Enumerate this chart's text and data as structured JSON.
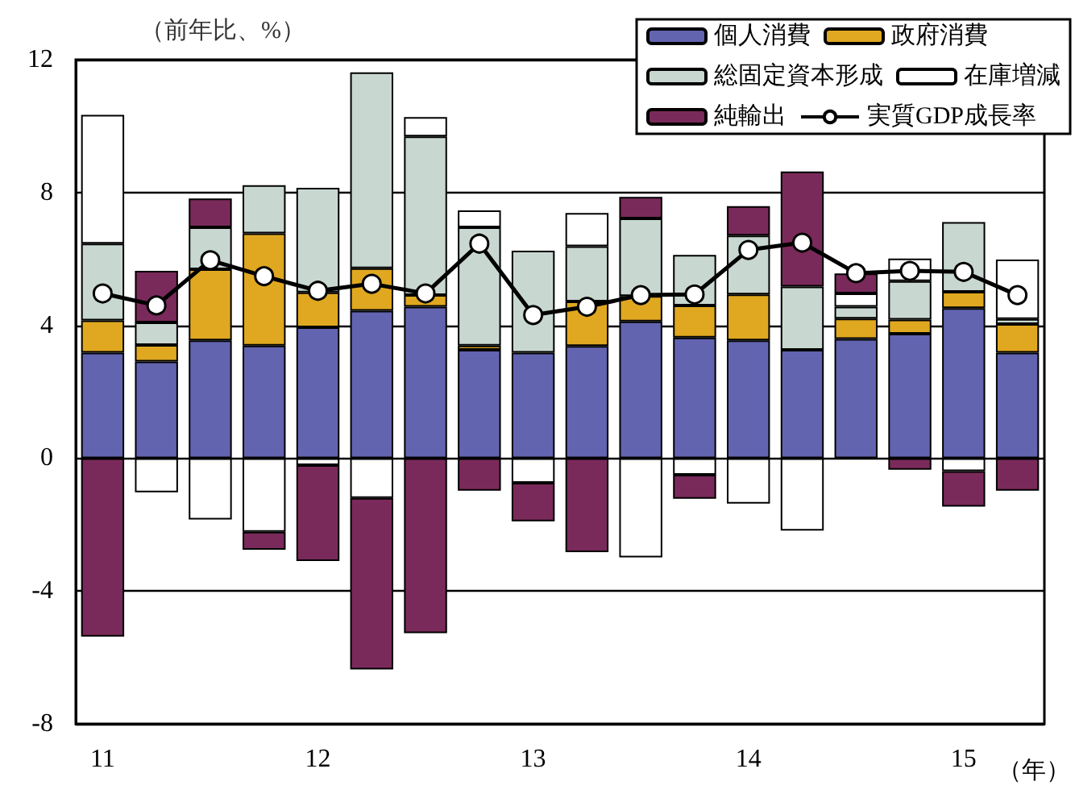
{
  "chart_data": {
    "type": "bar",
    "stacked": true,
    "ylabel": "（前年比、%）",
    "xlabel": "（年）",
    "categories": [
      "11",
      null,
      null,
      null,
      "12",
      null,
      null,
      null,
      "13",
      null,
      null,
      null,
      "14",
      null,
      null,
      null,
      "15",
      null
    ],
    "ylim": [
      -8,
      12
    ],
    "yticks": [
      -8,
      -4,
      0,
      4,
      8,
      12
    ],
    "grid": "y",
    "legend": "top right",
    "series": [
      {
        "name": "個人消費",
        "color": "#6264b0",
        "values": [
          3.18,
          2.91,
          3.55,
          3.39,
          3.94,
          4.44,
          4.56,
          3.26,
          3.18,
          3.38,
          4.12,
          3.63,
          3.55,
          3.26,
          3.59,
          3.75,
          4.52,
          3.18
        ]
      },
      {
        "name": "政府消費",
        "color": "#e0a820",
        "values": [
          0.97,
          0.5,
          2.14,
          3.38,
          1.05,
          1.28,
          0.35,
          0.13,
          null,
          1.34,
          0.76,
          0.97,
          1.38,
          null,
          0.61,
          0.42,
          0.49,
          0.86
        ]
      },
      {
        "name": "総固定資本形成",
        "color": "#c8d8d0",
        "values": [
          2.31,
          0.68,
          1.26,
          1.45,
          3.15,
          5.9,
          4.78,
          3.56,
          3.07,
          1.66,
          2.34,
          1.52,
          1.77,
          1.91,
          0.36,
          1.16,
          2.1,
          0.15
        ]
      },
      {
        "name": "在庫増減",
        "color": "#ffffff",
        "values": [
          3.88,
          -1.03,
          -1.85,
          -2.22,
          -0.21,
          -1.2,
          0.58,
          0.51,
          -0.74,
          1.0,
          -2.99,
          -0.5,
          -1.37,
          -2.18,
          0.4,
          0.68,
          -0.39,
          1.79
        ]
      },
      {
        "name": "純輸出",
        "color": "#7a2a5a",
        "values": [
          -5.37,
          1.55,
          0.87,
          -0.54,
          -2.89,
          -5.16,
          -5.27,
          -0.98,
          -1.16,
          -2.83,
          0.65,
          -0.72,
          0.89,
          3.46,
          0.6,
          -0.35,
          -1.07,
          -0.98
        ]
      },
      {
        "name": "実質GDP成長率",
        "type": "line",
        "color": "#000000",
        "marker": "circle",
        "values": [
          4.96,
          4.6,
          5.96,
          5.48,
          5.04,
          5.25,
          4.96,
          6.46,
          4.31,
          4.56,
          4.91,
          4.93,
          6.27,
          6.49,
          5.57,
          5.64,
          5.61,
          4.91
        ]
      }
    ]
  }
}
